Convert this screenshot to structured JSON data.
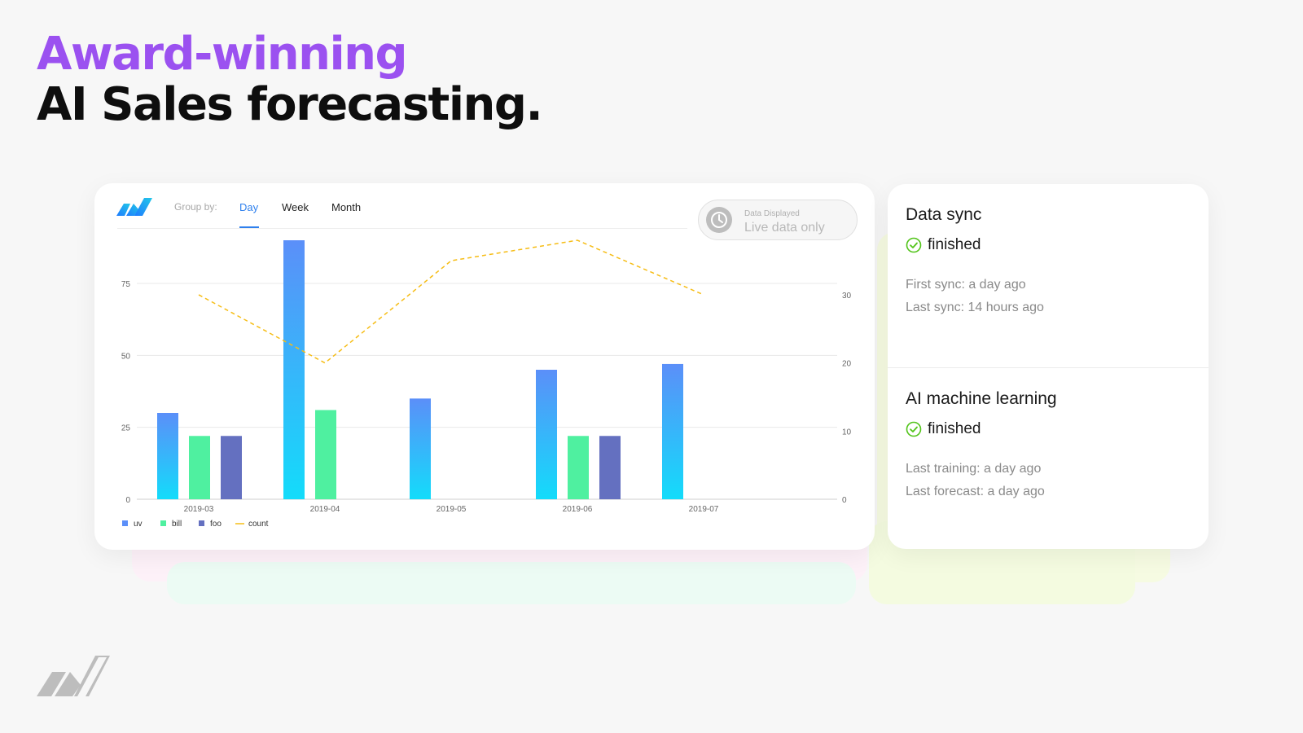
{
  "headline": {
    "line1": "Award-winning",
    "line2": "AI Sales forecasting."
  },
  "chart_card": {
    "group_by_label": "Group by:",
    "tabs": [
      "Day",
      "Week",
      "Month"
    ],
    "active_tab": "Day",
    "toggle": {
      "caption": "Data Displayed",
      "value": "Live data only",
      "icon": "clock-icon"
    }
  },
  "chart_data": {
    "type": "bar",
    "categories": [
      "2019-03",
      "2019-04",
      "2019-05",
      "2019-06",
      "2019-07"
    ],
    "series": [
      {
        "name": "uv",
        "kind": "bar",
        "axis": "left",
        "values": [
          30,
          90,
          35,
          45,
          47
        ]
      },
      {
        "name": "bill",
        "kind": "bar",
        "axis": "left",
        "values": [
          22,
          31,
          null,
          22,
          null
        ]
      },
      {
        "name": "foo",
        "kind": "bar",
        "axis": "left",
        "values": [
          22,
          null,
          null,
          22,
          null
        ]
      },
      {
        "name": "count",
        "kind": "line",
        "axis": "right",
        "values": [
          30,
          20,
          35,
          38,
          30
        ]
      }
    ],
    "left_axis": {
      "ticks": [
        0,
        25,
        50,
        75
      ],
      "range": [
        0,
        90
      ]
    },
    "right_axis": {
      "ticks": [
        0,
        10,
        20,
        30
      ],
      "range": [
        0,
        38
      ]
    },
    "grid": true,
    "legend_position": "bottom-left"
  },
  "status_card": {
    "sections": [
      {
        "title": "Data sync",
        "status": "finished",
        "lines": [
          "First sync: a day ago",
          "Last sync: 14 hours ago"
        ]
      },
      {
        "title": "AI machine learning",
        "status": "finished",
        "lines": [
          "Last training: a day ago",
          "Last forecast: a day ago"
        ]
      }
    ]
  },
  "colors": {
    "accent_purple": "#9b51f0",
    "tab_blue": "#2f80ed",
    "uv": "#5b8ff9",
    "bill": "#4ff0a0",
    "foo": "#6470c0",
    "count": "#f6bd16",
    "check_green": "#52c41a"
  }
}
